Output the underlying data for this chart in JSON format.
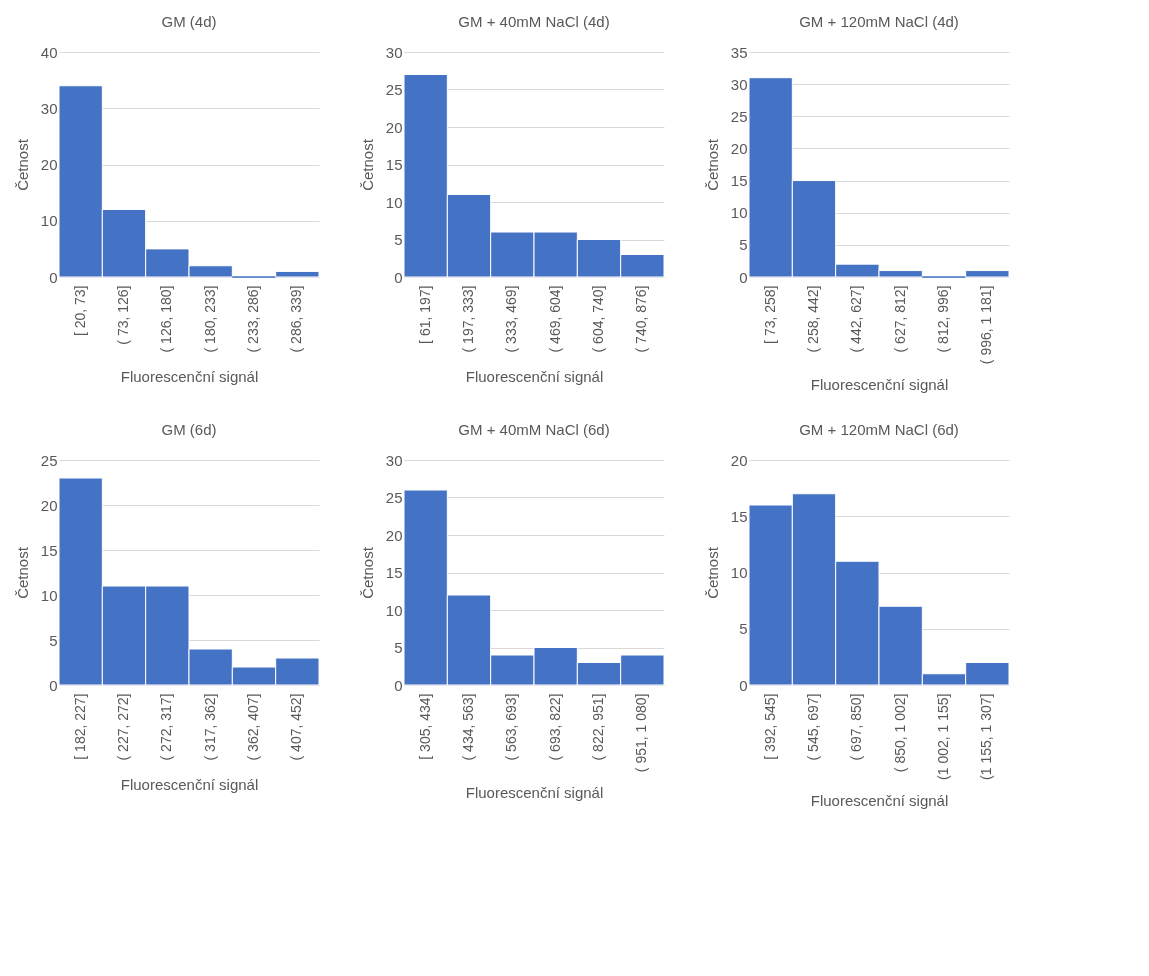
{
  "chart_data": [
    {
      "type": "bar",
      "title": "GM (4d)",
      "xlabel": "Fluorescenční signál",
      "ylabel": "Četnost",
      "categories": [
        "[ 20,  73]",
        "( 73,  126]",
        "( 126,  180]",
        "( 180,  233]",
        "( 233,  286]",
        "( 286,  339]"
      ],
      "values": [
        34,
        12,
        5,
        2,
        0,
        1
      ],
      "color": "#4472c4",
      "ylim": [
        0,
        40
      ],
      "yticks": [
        0,
        10,
        20,
        30,
        40
      ],
      "grid": "y"
    },
    {
      "type": "bar",
      "title": "GM + 40mM NaCl (4d)",
      "xlabel": "Fluorescenční signál",
      "ylabel": "Četnost",
      "categories": [
        "[ 61,  197]",
        "( 197,  333]",
        "( 333,  469]",
        "( 469,  604]",
        "( 604,  740]",
        "( 740,  876]"
      ],
      "values": [
        27,
        11,
        6,
        6,
        5,
        3
      ],
      "color": "#4472c4",
      "ylim": [
        0,
        30
      ],
      "yticks": [
        0,
        5,
        10,
        15,
        20,
        25,
        30
      ],
      "grid": "y"
    },
    {
      "type": "bar",
      "title": "GM + 120mM NaCl (4d)",
      "xlabel": "Fluorescenční signál",
      "ylabel": "Četnost",
      "categories": [
        "[ 73,  258]",
        "( 258,  442]",
        "( 442,  627]",
        "( 627,  812]",
        "( 812,  996]",
        "( 996, 1 181]"
      ],
      "values": [
        31,
        15,
        2,
        1,
        0,
        1
      ],
      "color": "#4472c4",
      "ylim": [
        0,
        35
      ],
      "yticks": [
        0,
        5,
        10,
        15,
        20,
        25,
        30,
        35
      ],
      "grid": "y"
    },
    {
      "type": "bar",
      "title": "GM (6d)",
      "xlabel": "Fluorescenční signál",
      "ylabel": "Četnost",
      "categories": [
        "[ 182,  227]",
        "( 227,  272]",
        "( 272,  317]",
        "( 317,  362]",
        "( 362,  407]",
        "( 407,  452]"
      ],
      "values": [
        23,
        11,
        11,
        4,
        2,
        3
      ],
      "color": "#4472c4",
      "ylim": [
        0,
        25
      ],
      "yticks": [
        0,
        5,
        10,
        15,
        20,
        25
      ],
      "grid": "y"
    },
    {
      "type": "bar",
      "title": "GM + 40mM NaCl (6d)",
      "xlabel": "Fluorescenční signál",
      "ylabel": "Četnost",
      "categories": [
        "[ 305,  434]",
        "( 434,  563]",
        "( 563,  693]",
        "( 693,  822]",
        "( 822,  951]",
        "( 951, 1 080]"
      ],
      "values": [
        26,
        12,
        4,
        5,
        3,
        4
      ],
      "color": "#4472c4",
      "ylim": [
        0,
        30
      ],
      "yticks": [
        0,
        5,
        10,
        15,
        20,
        25,
        30
      ],
      "grid": "y"
    },
    {
      "type": "bar",
      "title": "GM + 120mM NaCl (6d)",
      "xlabel": "Fluorescenční signál",
      "ylabel": "Četnost",
      "categories": [
        "[ 392,  545]",
        "( 545,  697]",
        "( 697,  850]",
        "( 850, 1 002]",
        "(1 002, 1 155]",
        "(1 155, 1 307]"
      ],
      "values": [
        16,
        17,
        11,
        7,
        1,
        2
      ],
      "color": "#4472c4",
      "ylim": [
        0,
        20
      ],
      "yticks": [
        0,
        5,
        10,
        15,
        20
      ],
      "grid": "y"
    }
  ]
}
